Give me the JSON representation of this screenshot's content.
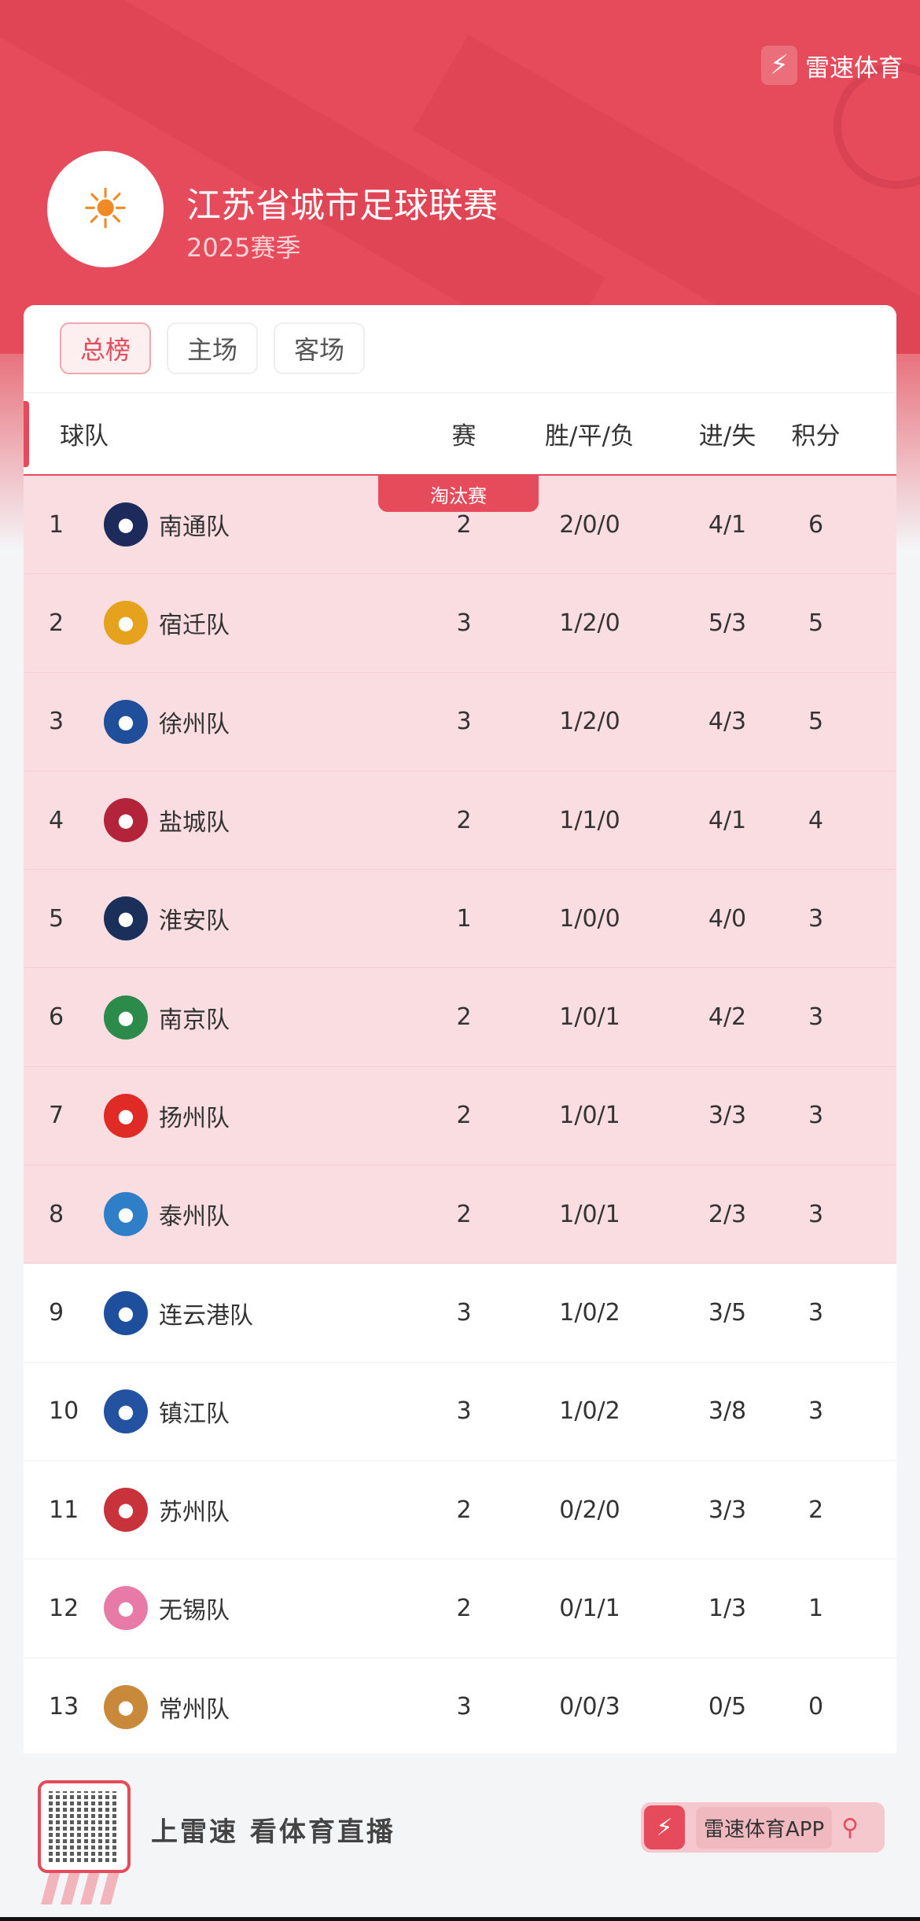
{
  "brand": {
    "name": "雷速体育",
    "icon": "lightning-bolt-icon"
  },
  "league": {
    "title": "江苏省城市足球联赛",
    "season": "2025赛季"
  },
  "tabs": [
    {
      "label": "总榜",
      "active": true
    },
    {
      "label": "主场",
      "active": false
    },
    {
      "label": "客场",
      "active": false
    }
  ],
  "columns": {
    "team": "球队",
    "played": "赛",
    "wdl": "胜/平/负",
    "goals": "进/失",
    "points": "积分"
  },
  "zone_label": "淘汰赛",
  "colors": {
    "accent": "#e54b5a",
    "qualified_bg": "#fadde0"
  },
  "rows": [
    {
      "rank": "1",
      "team": "南通队",
      "played": "2",
      "wdl": "2/0/0",
      "goals": "4/1",
      "points": "6",
      "qualified": true,
      "logo_color": "#1d2b5c"
    },
    {
      "rank": "2",
      "team": "宿迁队",
      "played": "3",
      "wdl": "1/2/0",
      "goals": "5/3",
      "points": "5",
      "qualified": true,
      "logo_color": "#e6a21c"
    },
    {
      "rank": "3",
      "team": "徐州队",
      "played": "3",
      "wdl": "1/2/0",
      "goals": "4/3",
      "points": "5",
      "qualified": true,
      "logo_color": "#1f4e9a"
    },
    {
      "rank": "4",
      "team": "盐城队",
      "played": "2",
      "wdl": "1/1/0",
      "goals": "4/1",
      "points": "4",
      "qualified": true,
      "logo_color": "#b3243a"
    },
    {
      "rank": "5",
      "team": "淮安队",
      "played": "1",
      "wdl": "1/0/0",
      "goals": "4/0",
      "points": "3",
      "qualified": true,
      "logo_color": "#1a2f5a"
    },
    {
      "rank": "6",
      "team": "南京队",
      "played": "2",
      "wdl": "1/0/1",
      "goals": "4/2",
      "points": "3",
      "qualified": true,
      "logo_color": "#2c8a4a"
    },
    {
      "rank": "7",
      "team": "扬州队",
      "played": "2",
      "wdl": "1/0/1",
      "goals": "3/3",
      "points": "3",
      "qualified": true,
      "logo_color": "#e02a26"
    },
    {
      "rank": "8",
      "team": "泰州队",
      "played": "2",
      "wdl": "1/0/1",
      "goals": "2/3",
      "points": "3",
      "qualified": true,
      "logo_color": "#2f7fc8"
    },
    {
      "rank": "9",
      "team": "连云港队",
      "played": "3",
      "wdl": "1/0/2",
      "goals": "3/5",
      "points": "3",
      "qualified": false,
      "logo_color": "#1e4f9c"
    },
    {
      "rank": "10",
      "team": "镇江队",
      "played": "3",
      "wdl": "1/0/2",
      "goals": "3/8",
      "points": "3",
      "qualified": false,
      "logo_color": "#2352a0"
    },
    {
      "rank": "11",
      "team": "苏州队",
      "played": "2",
      "wdl": "0/2/0",
      "goals": "3/3",
      "points": "2",
      "qualified": false,
      "logo_color": "#c8323a"
    },
    {
      "rank": "12",
      "team": "无锡队",
      "played": "2",
      "wdl": "0/1/1",
      "goals": "1/3",
      "points": "1",
      "qualified": false,
      "logo_color": "#e87aa8"
    },
    {
      "rank": "13",
      "team": "常州队",
      "played": "3",
      "wdl": "0/0/3",
      "goals": "0/5",
      "points": "0",
      "qualified": false,
      "logo_color": "#c9893a"
    }
  ],
  "footer": {
    "slogan": "上雷速 看体育直播",
    "app_label": "雷速体育APP",
    "qr_icon": "qr-code-icon",
    "search_icon": "search-icon"
  }
}
